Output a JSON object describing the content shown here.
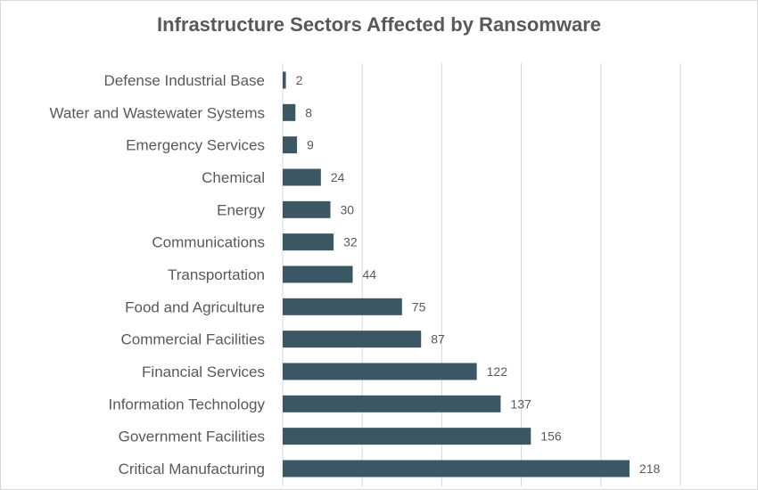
{
  "chart_data": {
    "type": "bar",
    "orientation": "horizontal",
    "title": "Infrastructure Sectors Affected by Ransomware",
    "xlabel": "",
    "ylabel": "",
    "categories": [
      "Defense Industrial Base",
      "Water and Wastewater Systems",
      "Emergency Services",
      "Chemical",
      "Energy",
      "Communications",
      "Transportation",
      "Food and Agriculture",
      "Commercial Facilities",
      "Financial Services",
      "Information Technology",
      "Government Facilities",
      "Critical Manufacturing"
    ],
    "values": [
      2,
      8,
      9,
      24,
      30,
      32,
      44,
      75,
      87,
      122,
      137,
      156,
      218
    ],
    "xlim": [
      0,
      250
    ],
    "grid": true,
    "legend": "none",
    "data_labels": true,
    "bar_color": "#3b5764"
  }
}
